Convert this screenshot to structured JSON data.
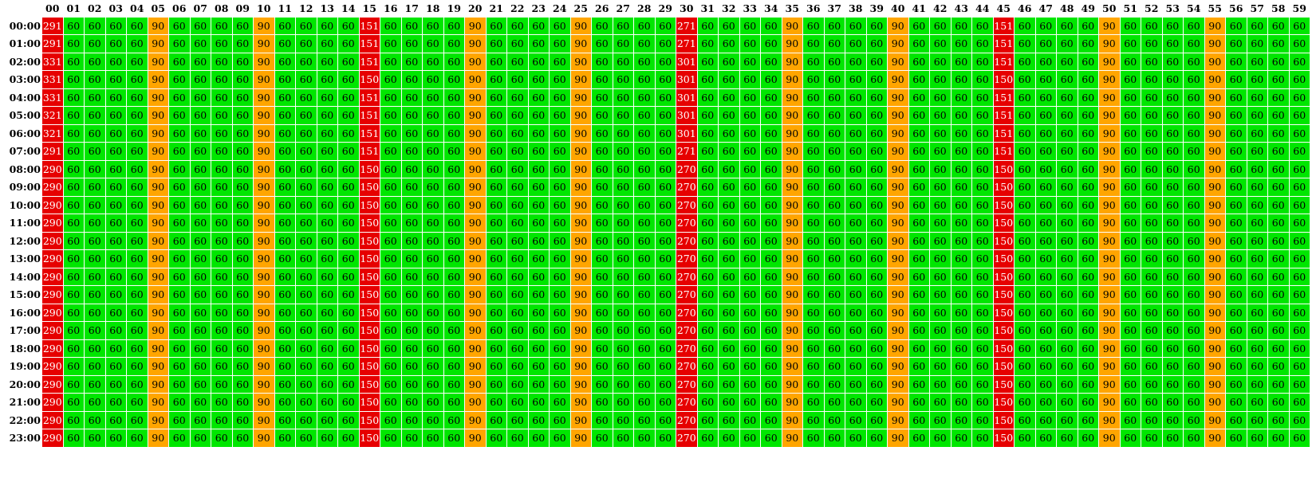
{
  "chart_data": {
    "type": "heatmap",
    "title": "",
    "xlabel": "",
    "ylabel": "",
    "minutes": [
      "00",
      "01",
      "02",
      "03",
      "04",
      "05",
      "06",
      "07",
      "08",
      "09",
      "10",
      "11",
      "12",
      "13",
      "14",
      "15",
      "16",
      "17",
      "18",
      "19",
      "20",
      "21",
      "22",
      "23",
      "24",
      "25",
      "26",
      "27",
      "28",
      "29",
      "30",
      "31",
      "32",
      "33",
      "34",
      "35",
      "36",
      "37",
      "38",
      "39",
      "40",
      "41",
      "42",
      "43",
      "44",
      "45",
      "46",
      "47",
      "48",
      "49",
      "50",
      "51",
      "52",
      "53",
      "54",
      "55",
      "56",
      "57",
      "58",
      "59"
    ],
    "hours": [
      "00:00",
      "01:00",
      "02:00",
      "03:00",
      "04:00",
      "05:00",
      "06:00",
      "07:00",
      "08:00",
      "09:00",
      "10:00",
      "11:00",
      "12:00",
      "13:00",
      "14:00",
      "15:00",
      "16:00",
      "17:00",
      "18:00",
      "19:00",
      "20:00",
      "21:00",
      "22:00",
      "23:00"
    ],
    "base_value": 60,
    "fives_value": 90,
    "quarter_values": [
      {
        "m00": 291,
        "m15": 151,
        "m30": 271,
        "m45": 151
      },
      {
        "m00": 291,
        "m15": 151,
        "m30": 271,
        "m45": 151
      },
      {
        "m00": 331,
        "m15": 151,
        "m30": 301,
        "m45": 151
      },
      {
        "m00": 331,
        "m15": 150,
        "m30": 301,
        "m45": 150
      },
      {
        "m00": 331,
        "m15": 151,
        "m30": 301,
        "m45": 151
      },
      {
        "m00": 321,
        "m15": 151,
        "m30": 301,
        "m45": 151
      },
      {
        "m00": 321,
        "m15": 151,
        "m30": 301,
        "m45": 151
      },
      {
        "m00": 291,
        "m15": 151,
        "m30": 271,
        "m45": 151
      },
      {
        "m00": 290,
        "m15": 150,
        "m30": 270,
        "m45": 150
      },
      {
        "m00": 290,
        "m15": 150,
        "m30": 270,
        "m45": 150
      },
      {
        "m00": 290,
        "m15": 150,
        "m30": 270,
        "m45": 150
      },
      {
        "m00": 290,
        "m15": 150,
        "m30": 270,
        "m45": 150
      },
      {
        "m00": 290,
        "m15": 150,
        "m30": 270,
        "m45": 150
      },
      {
        "m00": 290,
        "m15": 150,
        "m30": 270,
        "m45": 150
      },
      {
        "m00": 290,
        "m15": 150,
        "m30": 270,
        "m45": 150
      },
      {
        "m00": 290,
        "m15": 150,
        "m30": 270,
        "m45": 150
      },
      {
        "m00": 290,
        "m15": 150,
        "m30": 270,
        "m45": 150
      },
      {
        "m00": 290,
        "m15": 150,
        "m30": 270,
        "m45": 150
      },
      {
        "m00": 290,
        "m15": 150,
        "m30": 270,
        "m45": 150
      },
      {
        "m00": 290,
        "m15": 150,
        "m30": 270,
        "m45": 150
      },
      {
        "m00": 290,
        "m15": 150,
        "m30": 270,
        "m45": 150
      },
      {
        "m00": 290,
        "m15": 150,
        "m30": 270,
        "m45": 150
      },
      {
        "m00": 290,
        "m15": 150,
        "m30": 270,
        "m45": 150
      },
      {
        "m00": 290,
        "m15": 150,
        "m30": 270,
        "m45": 150
      }
    ],
    "colors": {
      "low": "#00e600",
      "medium": "#ffa500",
      "high": "#e60000"
    },
    "grid": true,
    "legend": "none"
  }
}
